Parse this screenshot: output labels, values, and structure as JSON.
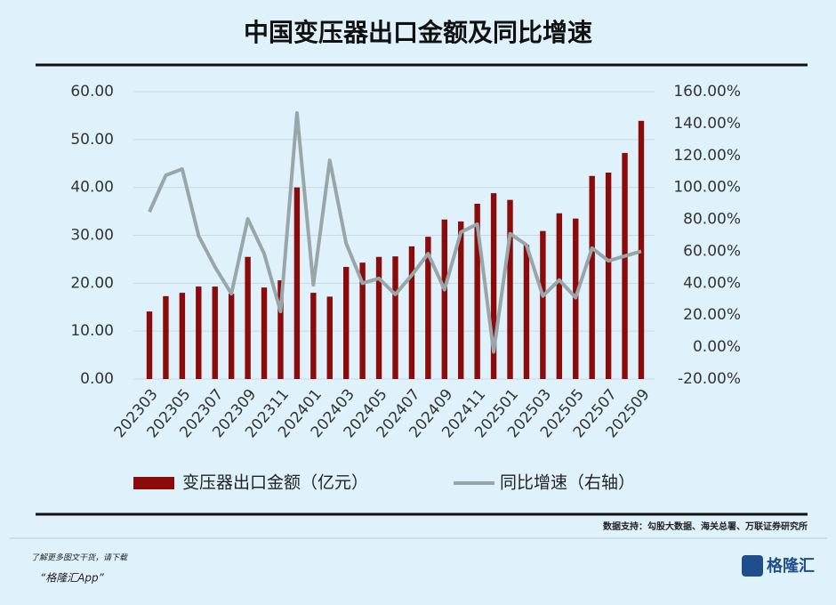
{
  "chart_data": {
    "type": "bar",
    "title": "中国变压器出口金额及同比增速",
    "categories": [
      "202303",
      null,
      "202305",
      null,
      "202307",
      null,
      "202309",
      null,
      "202311",
      null,
      "202401",
      null,
      "202403",
      null,
      "202405",
      null,
      "202407",
      null,
      "202409",
      null,
      "202411",
      null,
      "202501",
      null,
      "202503",
      null,
      "202505",
      null,
      "202507",
      null,
      "202509"
    ],
    "series": [
      {
        "name": "变压器出口金额（亿元）",
        "type": "bar",
        "color": "#8b0a0a",
        "values": [
          14.1,
          17.3,
          18.0,
          19.3,
          19.3,
          17.8,
          25.5,
          19.1,
          20.6,
          40.0,
          18.0,
          17.2,
          23.4,
          24.3,
          25.5,
          25.6,
          27.7,
          29.7,
          33.3,
          32.9,
          36.6,
          38.8,
          37.4,
          28.0,
          30.9,
          34.6,
          33.5,
          42.4,
          43.1,
          47.2,
          53.9
        ]
      },
      {
        "name": "同比增速（右轴）",
        "type": "line",
        "axis": "y2",
        "color": "#9aa5a9",
        "values": [
          84.7,
          107.6,
          111.5,
          69.7,
          50.2,
          33.4,
          80.3,
          58.5,
          22.3,
          146.6,
          39,
          117,
          65,
          40,
          43,
          33,
          45,
          58.5,
          36,
          72,
          77,
          -3,
          71,
          64,
          32,
          42,
          31,
          62,
          54,
          57,
          60
        ]
      }
    ],
    "ylim": [
      0,
      60
    ],
    "yticks": [
      {
        "value": 0,
        "label": "0.00"
      },
      {
        "value": 10,
        "label": "10.00"
      },
      {
        "value": 20,
        "label": "20.00"
      },
      {
        "value": 30,
        "label": "30.00"
      },
      {
        "value": 40,
        "label": "40.00"
      },
      {
        "value": 50,
        "label": "50.00"
      },
      {
        "value": 60,
        "label": "60.00"
      }
    ],
    "y2lim": [
      -20,
      160
    ],
    "y2ticks": [
      {
        "value": -20,
        "label": "-20.00%"
      },
      {
        "value": 0,
        "label": "0.00%"
      },
      {
        "value": 20,
        "label": "20.00%"
      },
      {
        "value": 40,
        "label": "40.00%"
      },
      {
        "value": 60,
        "label": "60.00%"
      },
      {
        "value": 80,
        "label": "80.00%"
      },
      {
        "value": 100,
        "label": "100.00%"
      },
      {
        "value": 120,
        "label": "120.00%"
      },
      {
        "value": 140,
        "label": "140.00%"
      },
      {
        "value": 160,
        "label": "160.00%"
      }
    ],
    "source": "数据支持：勾股大数据、海关总署、万联证券研究所"
  },
  "footer": {
    "prompt": "了解更多图文干货，请下载",
    "app": "“格隆汇App”",
    "logo": "格隆汇"
  }
}
